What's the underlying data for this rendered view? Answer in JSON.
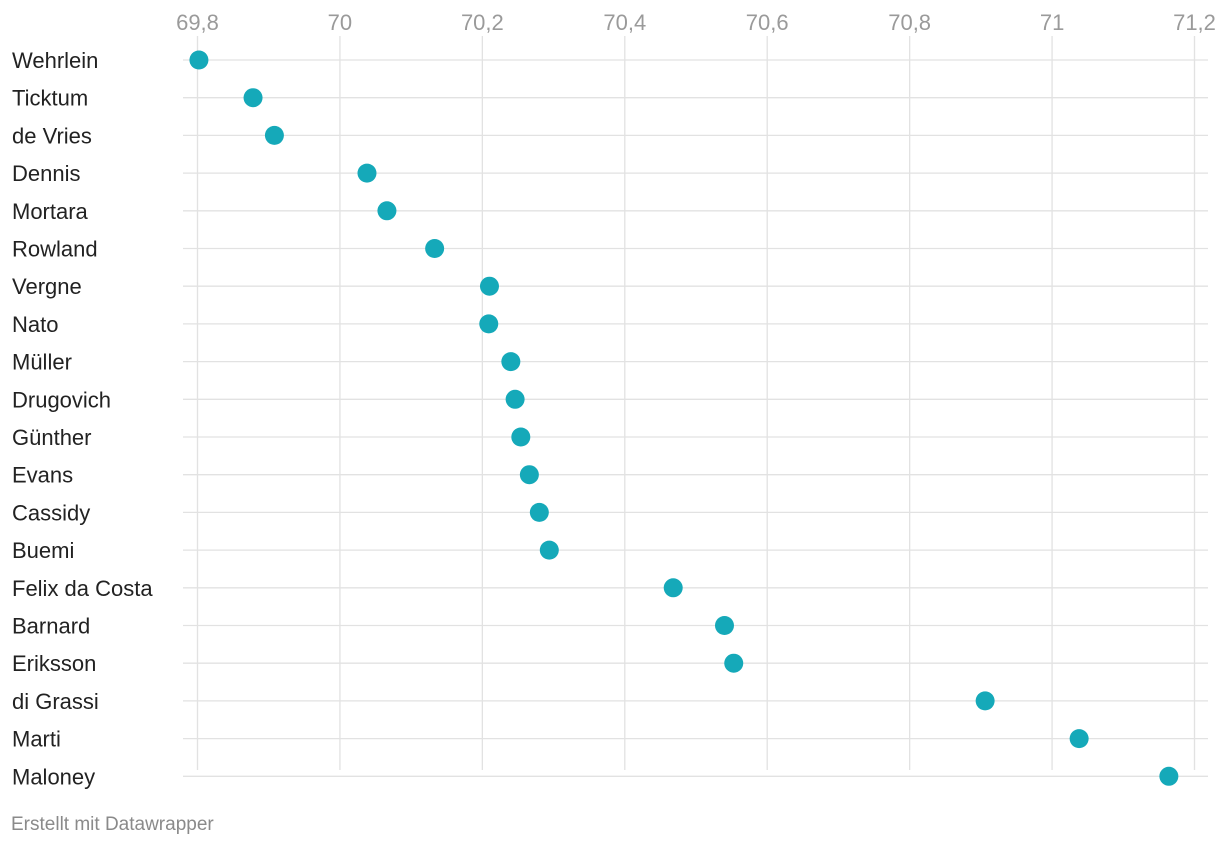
{
  "chart_data": {
    "type": "scatter",
    "title": "",
    "xlabel": "",
    "ylabel": "",
    "categories": [
      "Wehrlein",
      "Ticktum",
      "de Vries",
      "Dennis",
      "Mortara",
      "Rowland",
      "Vergne",
      "Nato",
      "Müller",
      "Drugovich",
      "Günther",
      "Evans",
      "Cassidy",
      "Buemi",
      "Felix da Costa",
      "Barnard",
      "Eriksson",
      "di Grassi",
      "Marti",
      "Maloney"
    ],
    "series": [
      {
        "values": [
          69.802,
          69.878,
          69.908,
          70.038,
          70.066,
          70.133,
          70.21,
          70.209,
          70.24,
          70.246,
          70.254,
          70.266,
          70.28,
          70.294,
          70.468,
          70.54,
          70.553,
          70.906,
          71.038,
          71.164
        ]
      }
    ],
    "xlim": [
      69.78,
      71.22
    ],
    "x_ticks": [
      69.8,
      70,
      70.2,
      70.4,
      70.6,
      70.8,
      71,
      71.2
    ],
    "x_tick_labels": [
      "69,8",
      "70",
      "70,2",
      "70,4",
      "70,6",
      "70,8",
      "71",
      "71,2"
    ],
    "x_axis_position": "top",
    "grid": true,
    "legend": "none",
    "colors": {
      "point": "#15a9b9",
      "grid": "#e2e2e2",
      "tick_text": "#9a9a9a",
      "label_text": "#222222",
      "credit_text": "#8a8a8a"
    }
  },
  "footer": {
    "credit": "Erstellt mit Datawrapper"
  }
}
